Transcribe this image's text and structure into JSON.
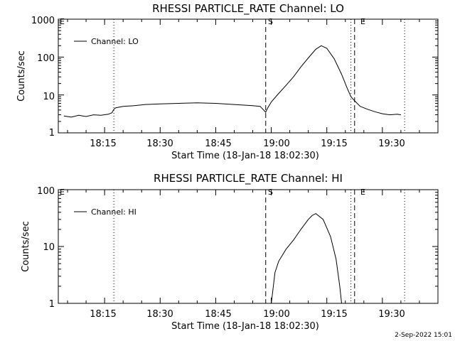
{
  "footer_date": "2-Sep-2022 15:01",
  "chart_data": [
    {
      "type": "line",
      "title": "RHESSI PARTICLE_RATE Channel: LO",
      "xlabel": "Start Time (18-Jan-18 18:02:30)",
      "ylabel": "Counts/sec",
      "y_scale": "log",
      "xlim": [
        "18:02:30",
        "19:45:00"
      ],
      "ylim": [
        1,
        1000
      ],
      "x_ticks": [
        "18:15",
        "18:30",
        "18:45",
        "19:00",
        "19:15",
        "19:30"
      ],
      "y_ticks": [
        "1",
        "10",
        "100",
        "1000"
      ],
      "legend": {
        "placement": "top-left",
        "entries": [
          "Channel: LO"
        ]
      },
      "vertical_markers": [
        {
          "time": "18:17:30",
          "style": "dotted",
          "label": ""
        },
        {
          "time": "18:58:30",
          "style": "dashed",
          "label": "S"
        },
        {
          "time": "19:21:30",
          "style": "dotted",
          "label": ""
        },
        {
          "time": "19:22:30",
          "style": "dashed",
          "label": "E"
        },
        {
          "time": "19:36:00",
          "style": "dotted",
          "label": ""
        }
      ],
      "edge_label": "E",
      "series": [
        {
          "name": "Channel: LO",
          "x": [
            "18:04:00",
            "18:06:00",
            "18:08:00",
            "18:10:00",
            "18:12:00",
            "18:14:00",
            "18:16:00",
            "18:17:00",
            "18:17:30",
            "18:18:00",
            "18:20:00",
            "18:23:00",
            "18:26:00",
            "18:30:00",
            "18:35:00",
            "18:40:00",
            "18:45:00",
            "18:50:00",
            "18:55:00",
            "18:57:00",
            "18:58:30",
            "18:59:00",
            "19:00:00",
            "19:02:00",
            "19:04:00",
            "19:06:00",
            "19:08:00",
            "19:10:00",
            "19:12:00",
            "19:13:30",
            "19:15:00",
            "19:17:00",
            "19:19:00",
            "19:20:30",
            "19:21:30",
            "19:22:30",
            "19:24:00",
            "19:26:00",
            "19:28:00",
            "19:30:00",
            "19:32:00",
            "19:34:00",
            "19:35:00"
          ],
          "y": [
            2.8,
            2.6,
            2.9,
            2.7,
            3.0,
            2.9,
            3.1,
            3.4,
            4.2,
            4.6,
            5.0,
            5.2,
            5.6,
            5.8,
            6.0,
            6.2,
            6.0,
            5.6,
            5.2,
            5.0,
            3.5,
            4.5,
            6.5,
            11,
            18,
            30,
            55,
            95,
            160,
            200,
            170,
            90,
            35,
            15,
            9,
            7,
            5,
            4.2,
            3.6,
            3.2,
            3.0,
            3.1,
            3.0
          ]
        }
      ]
    },
    {
      "type": "line",
      "title": "RHESSI PARTICLE_RATE Channel: HI",
      "xlabel": "Start Time (18-Jan-18 18:02:30)",
      "ylabel": "Counts/sec",
      "y_scale": "log",
      "xlim": [
        "18:02:30",
        "19:45:00"
      ],
      "ylim": [
        1,
        100
      ],
      "x_ticks": [
        "18:15",
        "18:30",
        "18:45",
        "19:00",
        "19:15",
        "19:30"
      ],
      "y_ticks": [
        "1",
        "10",
        "100"
      ],
      "legend": {
        "placement": "top-left",
        "entries": [
          "Channel: HI"
        ]
      },
      "vertical_markers": [
        {
          "time": "18:17:30",
          "style": "dotted",
          "label": ""
        },
        {
          "time": "18:58:30",
          "style": "dashed",
          "label": "S"
        },
        {
          "time": "19:21:30",
          "style": "dotted",
          "label": ""
        },
        {
          "time": "19:22:30",
          "style": "dashed",
          "label": "E"
        },
        {
          "time": "19:36:00",
          "style": "dotted",
          "label": ""
        }
      ],
      "edge_label": "E",
      "series": [
        {
          "name": "Channel: HI",
          "x": [
            "19:00:00",
            "19:01:00",
            "19:02:00",
            "19:04:00",
            "19:06:00",
            "19:08:00",
            "19:10:00",
            "19:11:00",
            "19:12:00",
            "19:14:00",
            "19:16:00",
            "19:17:30",
            "19:18:30",
            "19:19:00"
          ],
          "y": [
            1.0,
            3.5,
            5.5,
            9,
            13,
            20,
            30,
            35,
            38,
            30,
            15,
            6,
            2,
            1.0
          ]
        }
      ]
    }
  ]
}
